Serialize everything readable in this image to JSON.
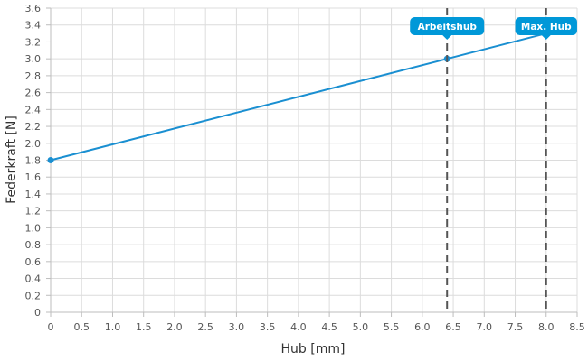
{
  "chart_data": {
    "type": "line",
    "title": "",
    "xlabel": "Hub [mm]",
    "ylabel": "Federkraft [N]",
    "xlim": [
      0,
      8.5
    ],
    "ylim": [
      0,
      3.6
    ],
    "x_ticks": [
      "0",
      "0.5",
      "1.0",
      "1.5",
      "2.0",
      "2.5",
      "3.0",
      "3.5",
      "4.0",
      "4.5",
      "5.0",
      "5.5",
      "6.0",
      "6.5",
      "7.0",
      "7.5",
      "8.0",
      "8.5"
    ],
    "y_ticks": [
      "0",
      "0.2",
      "0.4",
      "0.6",
      "0.8",
      "1.0",
      "1.2",
      "1.4",
      "1.6",
      "1.8",
      "2.0",
      "2.2",
      "2.4",
      "2.6",
      "2.8",
      "3.0",
      "3.2",
      "3.4",
      "3.6"
    ],
    "grid": true,
    "line_color": "#1a8fd1",
    "series": [
      {
        "points": [
          {
            "x": 0,
            "y": 1.8
          },
          {
            "x": 6.4,
            "y": 3.0
          },
          {
            "x": 8.0,
            "y": 3.3
          }
        ]
      }
    ],
    "markers": [
      {
        "x": 6.4,
        "label": "Arbeitshub",
        "has_point": true
      },
      {
        "x": 8.0,
        "label": "Max. Hub",
        "has_point": false
      }
    ],
    "marker_color": "#0098d8"
  }
}
